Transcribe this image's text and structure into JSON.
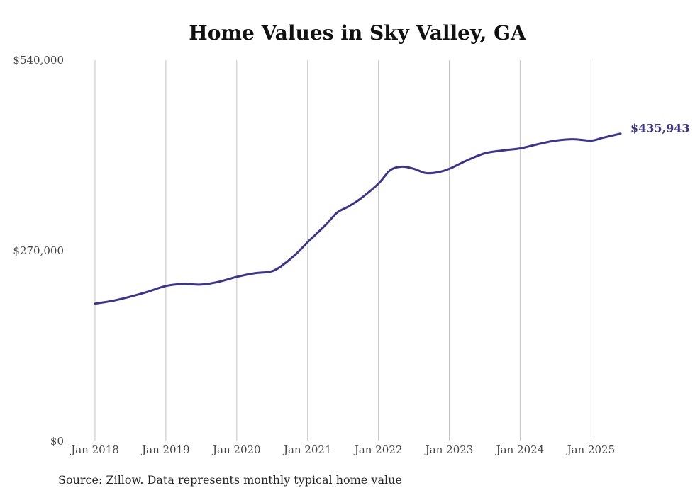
{
  "chart_data": {
    "type": "line",
    "title": "Home Values in Sky Valley, GA",
    "xlabel": "",
    "ylabel": "",
    "ylim": [
      0,
      540000
    ],
    "y_ticks": [
      {
        "value": 0,
        "label": "$0"
      },
      {
        "value": 270000,
        "label": "$270,000"
      },
      {
        "value": 540000,
        "label": "$540,000"
      }
    ],
    "x_ticks": [
      "Jan 2018",
      "Jan 2019",
      "Jan 2020",
      "Jan 2021",
      "Jan 2022",
      "Jan 2023",
      "Jan 2024",
      "Jan 2025"
    ],
    "x_start": "2018-01",
    "x_end": "2025-06",
    "grid": "vertical",
    "legend": "none",
    "series": [
      {
        "color": "#3b3590",
        "end_label": "$435,943",
        "points": [
          [
            "2018-01",
            195000
          ],
          [
            "2018-04",
            199000
          ],
          [
            "2018-07",
            205000
          ],
          [
            "2018-10",
            212000
          ],
          [
            "2019-01",
            220000
          ],
          [
            "2019-04",
            223000
          ],
          [
            "2019-07",
            222000
          ],
          [
            "2019-10",
            226000
          ],
          [
            "2020-01",
            233000
          ],
          [
            "2020-04",
            238000
          ],
          [
            "2020-07",
            241000
          ],
          [
            "2020-09",
            251000
          ],
          [
            "2020-11",
            265000
          ],
          [
            "2021-01",
            282000
          ],
          [
            "2021-04",
            306000
          ],
          [
            "2021-06",
            324000
          ],
          [
            "2021-08",
            333000
          ],
          [
            "2021-10",
            344000
          ],
          [
            "2022-01",
            365000
          ],
          [
            "2022-03",
            384000
          ],
          [
            "2022-05",
            389000
          ],
          [
            "2022-07",
            386000
          ],
          [
            "2022-09",
            380000
          ],
          [
            "2022-11",
            381000
          ],
          [
            "2023-01",
            386000
          ],
          [
            "2023-04",
            398000
          ],
          [
            "2023-07",
            408000
          ],
          [
            "2023-10",
            412000
          ],
          [
            "2024-01",
            415000
          ],
          [
            "2024-04",
            421000
          ],
          [
            "2024-07",
            426000
          ],
          [
            "2024-10",
            428000
          ],
          [
            "2025-01",
            426000
          ],
          [
            "2025-03",
            430000
          ],
          [
            "2025-06",
            435943
          ]
        ]
      }
    ],
    "source": "Source: Zillow. Data represents monthly typical home value"
  }
}
